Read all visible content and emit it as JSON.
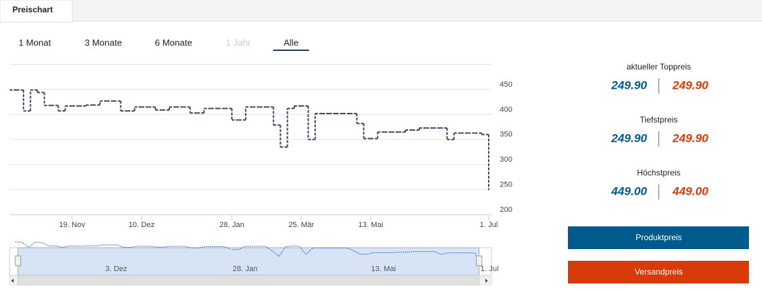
{
  "tab": "Preischart",
  "range_buttons": [
    "1 Monat",
    "3 Monate",
    "6 Monate",
    "1 Jahr",
    "Alle"
  ],
  "chart_data": {
    "type": "line",
    "grid": true,
    "ylim": [
      200,
      500
    ],
    "yticks": [
      200,
      250,
      300,
      350,
      400,
      450
    ],
    "categories": [
      null,
      null,
      null,
      null,
      null,
      null,
      null,
      null,
      null,
      "19. Nov",
      null,
      null,
      null,
      null,
      null,
      null,
      null,
      null,
      null,
      "10. Dez",
      null,
      null,
      null,
      null,
      null,
      null,
      null,
      null,
      null,
      null,
      null,
      null,
      "28. Jan",
      null,
      null,
      null,
      null,
      null,
      null,
      null,
      null,
      null,
      "25. Mär",
      null,
      null,
      null,
      null,
      null,
      null,
      null,
      null,
      null,
      "13. Mai",
      null,
      null,
      null,
      null,
      null,
      null,
      null,
      null,
      null,
      null,
      null,
      null,
      null,
      null,
      null,
      null,
      "1. Jul"
    ],
    "series": [
      {
        "color": "#3d4a5c",
        "values": [
          449,
          449,
          407,
          449,
          444,
          418,
          418,
          407,
          417,
          417,
          417,
          419,
          419,
          427,
          427,
          427,
          407,
          407,
          415,
          415,
          415,
          409,
          409,
          415,
          415,
          415,
          403,
          403,
          412,
          412,
          412,
          412,
          389,
          389,
          415,
          415,
          415,
          415,
          379,
          335,
          412,
          417,
          417,
          350,
          402,
          402,
          402,
          402,
          402,
          402,
          382,
          352,
          352,
          365,
          365,
          365,
          365,
          369,
          369,
          373,
          373,
          373,
          373,
          350,
          363,
          363,
          363,
          363,
          360,
          249.9
        ]
      }
    ]
  },
  "navigator": {
    "labels": [
      "3. Dez",
      "28. Jan",
      "13. Mai",
      "1. Jul"
    ]
  },
  "panel": {
    "stats": [
      {
        "label": "aktueller Toppreis",
        "product": "249.90",
        "shipping": "249.90"
      },
      {
        "label": "Tiefstpreis",
        "product": "249.90",
        "shipping": "249.90"
      },
      {
        "label": "Höchstpreis",
        "product": "449.00",
        "shipping": "449.00"
      }
    ],
    "buttons": [
      "Produktpreis",
      "Versandpreis"
    ]
  }
}
